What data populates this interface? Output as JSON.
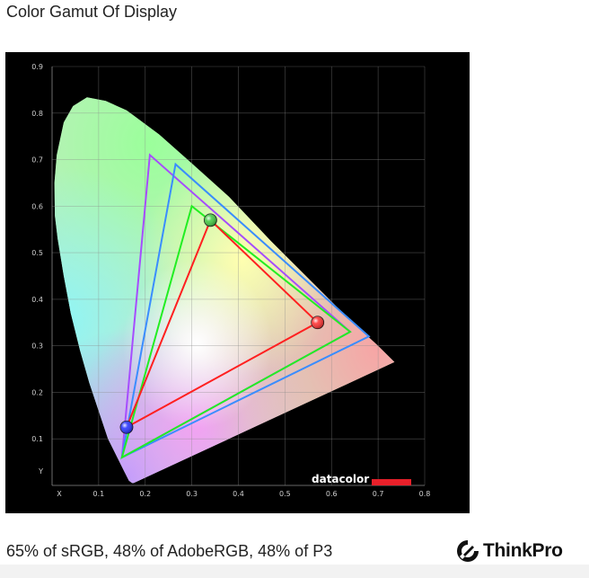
{
  "page": {
    "title": "Color Gamut Of Display",
    "caption": "65% of sRGB, 48% of AdobeRGB, 48% of P3",
    "logo_text": "ThinkPro",
    "logo_icon": "thinkpro-logo-icon"
  },
  "chart_data": {
    "type": "scatter",
    "title": "",
    "xlabel": "X",
    "ylabel": "Y",
    "xlim": [
      0,
      0.8
    ],
    "ylim": [
      0,
      0.9
    ],
    "grid": true,
    "x_ticks": [
      "0.1",
      "0.2",
      "0.3",
      "0.4",
      "0.5",
      "0.6",
      "0.7",
      "0.8"
    ],
    "y_ticks": [
      "0.1",
      "0.2",
      "0.3",
      "0.4",
      "0.5",
      "0.6",
      "0.7",
      "0.8",
      "0.9"
    ],
    "background_color": "#000000",
    "watermark": "datacolor",
    "watermark_bar_color": "#e8202a",
    "spectral_locus": [
      [
        0.175,
        0.005
      ],
      [
        0.172,
        0.005
      ],
      [
        0.165,
        0.01
      ],
      [
        0.155,
        0.03
      ],
      [
        0.14,
        0.06
      ],
      [
        0.12,
        0.1
      ],
      [
        0.1,
        0.16
      ],
      [
        0.08,
        0.22
      ],
      [
        0.06,
        0.29
      ],
      [
        0.04,
        0.37
      ],
      [
        0.025,
        0.45
      ],
      [
        0.012,
        0.53
      ],
      [
        0.006,
        0.58
      ],
      [
        0.005,
        0.65
      ],
      [
        0.01,
        0.71
      ],
      [
        0.025,
        0.78
      ],
      [
        0.045,
        0.815
      ],
      [
        0.075,
        0.834
      ],
      [
        0.115,
        0.826
      ],
      [
        0.16,
        0.806
      ],
      [
        0.23,
        0.754
      ],
      [
        0.3,
        0.692
      ],
      [
        0.38,
        0.62
      ],
      [
        0.47,
        0.525
      ],
      [
        0.56,
        0.435
      ],
      [
        0.64,
        0.355
      ],
      [
        0.7,
        0.3
      ],
      [
        0.735,
        0.265
      ]
    ],
    "series": [
      {
        "name": "",
        "color": "#a64dff",
        "points": [
          [
            0.64,
            0.33
          ],
          [
            0.21,
            0.71
          ],
          [
            0.15,
            0.06
          ]
        ]
      },
      {
        "name": "",
        "color": "#3a8dff",
        "points": [
          [
            0.68,
            0.32
          ],
          [
            0.265,
            0.69
          ],
          [
            0.15,
            0.06
          ]
        ]
      },
      {
        "name": "",
        "color": "#22ee22",
        "points": [
          [
            0.64,
            0.33
          ],
          [
            0.3,
            0.6
          ],
          [
            0.15,
            0.06
          ]
        ]
      },
      {
        "name": "",
        "color": "#ff2020",
        "points": [
          [
            0.57,
            0.35
          ],
          [
            0.34,
            0.57
          ],
          [
            0.16,
            0.125
          ]
        ]
      }
    ],
    "measured_primaries": [
      {
        "color": "red",
        "fill": "#ff2a2a",
        "x": 0.57,
        "y": 0.35
      },
      {
        "color": "green",
        "fill": "#3cc83c",
        "x": 0.34,
        "y": 0.57
      },
      {
        "color": "blue",
        "fill": "#1f2cff",
        "x": 0.16,
        "y": 0.125
      }
    ]
  }
}
